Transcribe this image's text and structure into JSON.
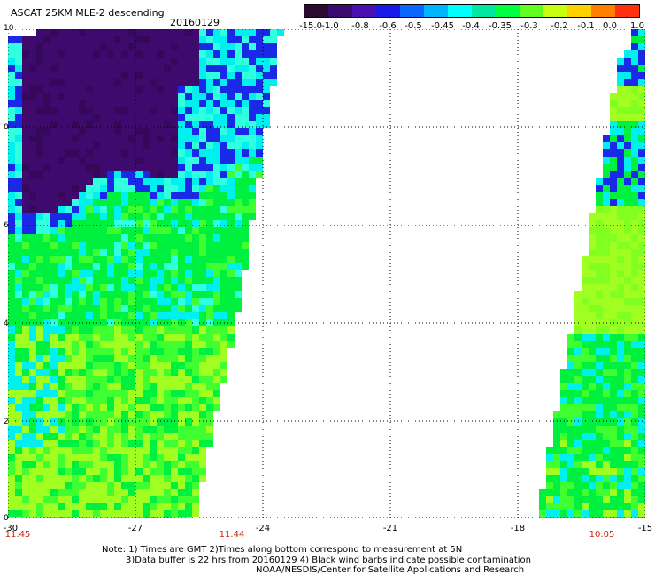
{
  "header": {
    "title": "ASCAT 25KM MLE-2 descending",
    "date": "20160129"
  },
  "colorbar": {
    "labels": [
      "-15.0",
      "-1.0",
      "-0.8",
      "-0.6",
      "-0.5",
      "-0.45",
      "-0.4",
      "-0.35",
      "-0.3",
      "-0.2",
      "-0.1",
      "0.0",
      "1.0"
    ],
    "colors": [
      "#2a0a2e",
      "#3b0a6e",
      "#4a10b0",
      "#1a1ae8",
      "#0a66ff",
      "#00b4ff",
      "#00ffff",
      "#00e8a0",
      "#00ff40",
      "#60ff20",
      "#c8ff10",
      "#ffd000",
      "#ff8000",
      "#ff3010"
    ]
  },
  "map": {
    "y_ticks": [
      "10",
      "8",
      "6",
      "4",
      "2",
      "0"
    ],
    "x_ticks": [
      "-30",
      "-27",
      "-24",
      "-21",
      "-18",
      "-15"
    ],
    "time_labels": [
      "11:45",
      "11:44",
      "10:05"
    ]
  },
  "notes": {
    "line1": "Note: 1) Times are GMT 2)Times along bottom correspond to measurement at 5N",
    "line2": "3)Data buffer is 22 hrs from 20160129 4) Black wind barbs indicate possible contamination",
    "line3": "NOAA/NESDIS/Center for Satellite Applications and Research"
  }
}
